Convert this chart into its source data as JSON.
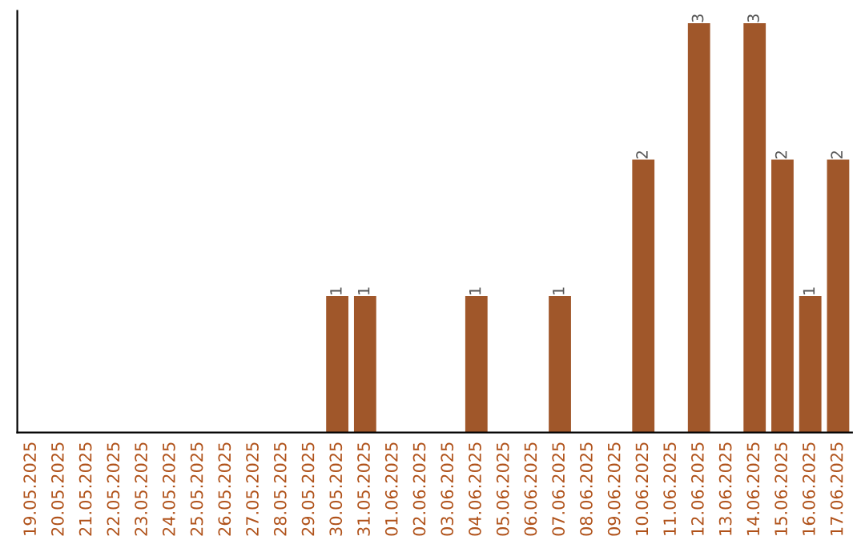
{
  "chart_data": {
    "type": "bar",
    "categories": [
      "19.05.2025",
      "20.05.2025",
      "21.05.2025",
      "22.05.2025",
      "23.05.2025",
      "24.05.2025",
      "25.05.2025",
      "26.05.2025",
      "27.05.2025",
      "28.05.2025",
      "29.05.2025",
      "30.05.2025",
      "31.05.2025",
      "01.06.2025",
      "02.06.2025",
      "03.06.2025",
      "04.06.2025",
      "05.06.2025",
      "06.06.2025",
      "07.06.2025",
      "08.06.2025",
      "09.06.2025",
      "10.06.2025",
      "11.06.2025",
      "12.06.2025",
      "13.06.2025",
      "14.06.2025",
      "15.06.2025",
      "16.06.2025",
      "17.06.2025"
    ],
    "values": [
      0,
      0,
      0,
      0,
      0,
      0,
      0,
      0,
      0,
      0,
      0,
      1,
      1,
      0,
      0,
      0,
      1,
      0,
      0,
      1,
      0,
      0,
      2,
      0,
      3,
      0,
      3,
      2,
      1,
      2
    ],
    "value_labels": [
      null,
      null,
      null,
      null,
      null,
      null,
      null,
      null,
      null,
      null,
      null,
      "1",
      "1",
      null,
      null,
      null,
      "1",
      null,
      null,
      "1",
      null,
      null,
      "2",
      null,
      "3",
      null,
      "3",
      "2",
      "1",
      "2"
    ],
    "color": "#a0572a",
    "tick_labels": "x",
    "grid": false
  }
}
